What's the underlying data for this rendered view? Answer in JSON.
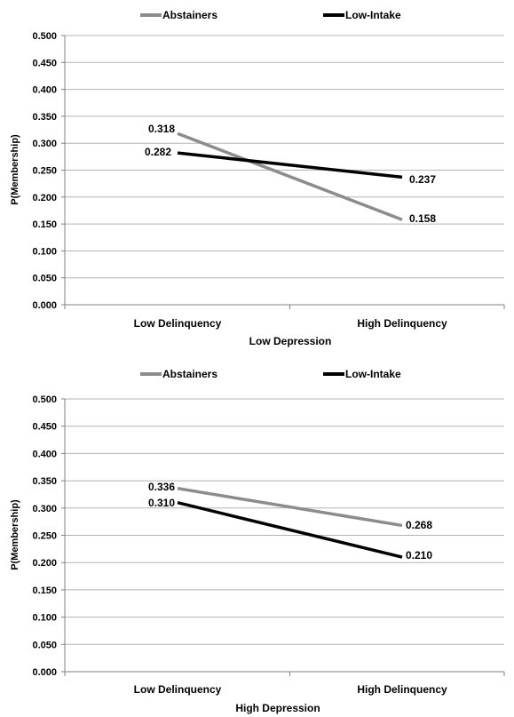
{
  "chart_data": [
    {
      "type": "line",
      "categories": [
        "Low Delinquency",
        "High Delinquency"
      ],
      "xlabel": "Low Depression",
      "ylabel": "P(Membership)",
      "ylim": [
        0,
        0.5
      ],
      "yticks": [
        "0.000",
        "0.050",
        "0.100",
        "0.150",
        "0.200",
        "0.250",
        "0.300",
        "0.350",
        "0.400",
        "0.450",
        "0.500"
      ],
      "grid": true,
      "legend_position": "top",
      "series": [
        {
          "name": "Abstainers",
          "values": [
            0.318,
            0.158
          ],
          "labels": [
            "0.318",
            "0.158"
          ],
          "color": "#8c8c8c"
        },
        {
          "name": "Low-Intake",
          "values": [
            0.282,
            0.237
          ],
          "labels": [
            "0.282",
            "0.237"
          ],
          "color": "#000000"
        }
      ]
    },
    {
      "type": "line",
      "categories": [
        "Low Delinquency",
        "High Delinquency"
      ],
      "xlabel": "High Depression",
      "ylabel": "P(Membership)",
      "ylim": [
        0,
        0.5
      ],
      "yticks": [
        "0.000",
        "0.050",
        "0.100",
        "0.150",
        "0.200",
        "0.250",
        "0.300",
        "0.350",
        "0.400",
        "0.450",
        "0.500"
      ],
      "grid": true,
      "legend_position": "top",
      "series": [
        {
          "name": "Abstainers",
          "values": [
            0.336,
            0.268
          ],
          "labels": [
            "0.336",
            "0.268"
          ],
          "color": "#8c8c8c"
        },
        {
          "name": "Low-Intake",
          "values": [
            0.31,
            0.21
          ],
          "labels": [
            "0.310",
            "0.210"
          ],
          "color": "#000000"
        }
      ]
    }
  ]
}
